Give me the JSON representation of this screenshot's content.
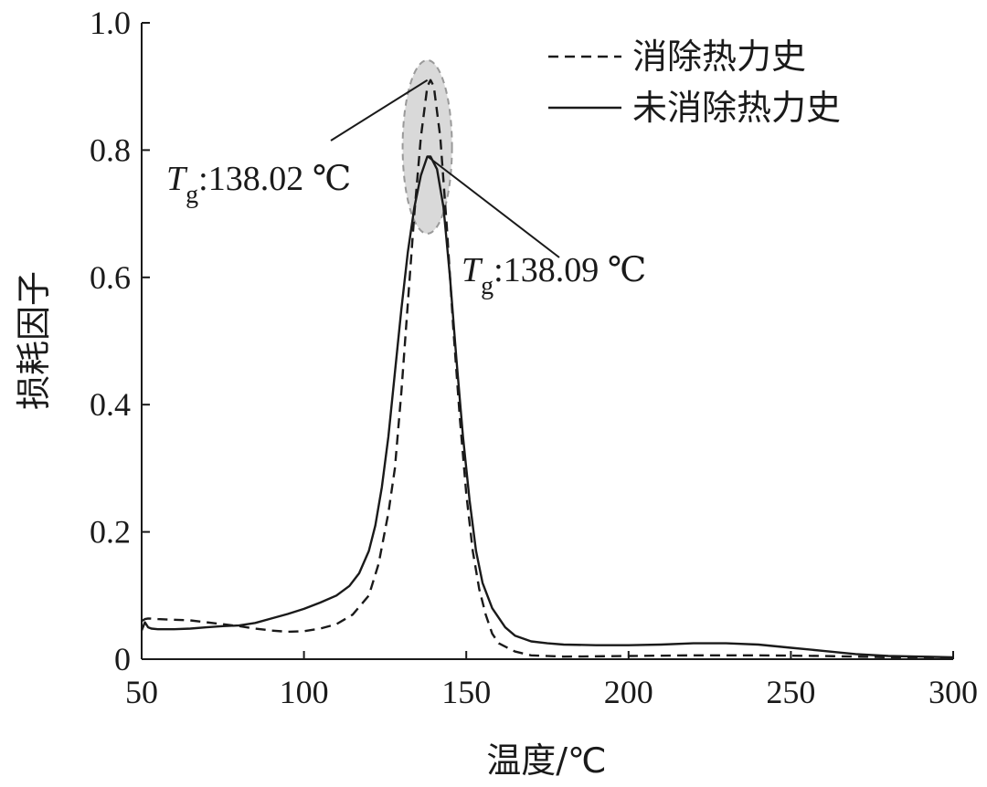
{
  "chart_data": {
    "type": "line",
    "xlabel": "温度/℃",
    "ylabel": "损耗因子",
    "xlim": [
      50,
      300
    ],
    "ylim": [
      0,
      1.0
    ],
    "xticks": [
      50,
      100,
      150,
      200,
      250,
      300
    ],
    "xtick_labels": [
      "50",
      "100",
      "150",
      "200",
      "250",
      "300"
    ],
    "yticks": [
      0,
      0.2,
      0.4,
      0.6,
      0.8,
      1.0
    ],
    "ytick_labels": [
      "0",
      "0.2",
      "0.4",
      "0.6",
      "0.8",
      "1.0"
    ],
    "grid": false,
    "legend_position": "top-right",
    "series": [
      {
        "name": "消除热力史",
        "style": "dashed",
        "color": "#1a1a1a",
        "points": [
          [
            50,
            0.06
          ],
          [
            51,
            0.063
          ],
          [
            52,
            0.064
          ],
          [
            55,
            0.063
          ],
          [
            60,
            0.062
          ],
          [
            65,
            0.061
          ],
          [
            70,
            0.058
          ],
          [
            75,
            0.055
          ],
          [
            80,
            0.052
          ],
          [
            85,
            0.048
          ],
          [
            90,
            0.045
          ],
          [
            95,
            0.043
          ],
          [
            100,
            0.044
          ],
          [
            105,
            0.048
          ],
          [
            110,
            0.055
          ],
          [
            115,
            0.07
          ],
          [
            120,
            0.1
          ],
          [
            123,
            0.15
          ],
          [
            126,
            0.23
          ],
          [
            128,
            0.3
          ],
          [
            130,
            0.42
          ],
          [
            132,
            0.56
          ],
          [
            134,
            0.7
          ],
          [
            136,
            0.82
          ],
          [
            138,
            0.9
          ],
          [
            139,
            0.91
          ],
          [
            140,
            0.9
          ],
          [
            142,
            0.82
          ],
          [
            144,
            0.68
          ],
          [
            146,
            0.52
          ],
          [
            148,
            0.38
          ],
          [
            150,
            0.26
          ],
          [
            152,
            0.17
          ],
          [
            154,
            0.11
          ],
          [
            156,
            0.07
          ],
          [
            158,
            0.04
          ],
          [
            160,
            0.025
          ],
          [
            165,
            0.012
          ],
          [
            170,
            0.006
          ],
          [
            180,
            0.004
          ],
          [
            200,
            0.005
          ],
          [
            220,
            0.006
          ],
          [
            240,
            0.006
          ],
          [
            260,
            0.005
          ],
          [
            280,
            0.003
          ],
          [
            300,
            0.002
          ]
        ]
      },
      {
        "name": "未消除热力史",
        "style": "solid",
        "color": "#1a1a1a",
        "points": [
          [
            50,
            0.045
          ],
          [
            51,
            0.058
          ],
          [
            52,
            0.05
          ],
          [
            53,
            0.048
          ],
          [
            55,
            0.047
          ],
          [
            60,
            0.047
          ],
          [
            65,
            0.048
          ],
          [
            70,
            0.05
          ],
          [
            75,
            0.052
          ],
          [
            80,
            0.053
          ],
          [
            85,
            0.057
          ],
          [
            90,
            0.064
          ],
          [
            95,
            0.071
          ],
          [
            100,
            0.079
          ],
          [
            105,
            0.089
          ],
          [
            110,
            0.1
          ],
          [
            114,
            0.115
          ],
          [
            117,
            0.135
          ],
          [
            120,
            0.17
          ],
          [
            122,
            0.21
          ],
          [
            124,
            0.27
          ],
          [
            126,
            0.35
          ],
          [
            128,
            0.45
          ],
          [
            130,
            0.55
          ],
          [
            132,
            0.64
          ],
          [
            134,
            0.71
          ],
          [
            136,
            0.76
          ],
          [
            138,
            0.79
          ],
          [
            139,
            0.79
          ],
          [
            141,
            0.77
          ],
          [
            143,
            0.71
          ],
          [
            145,
            0.6
          ],
          [
            147,
            0.47
          ],
          [
            149,
            0.35
          ],
          [
            151,
            0.25
          ],
          [
            153,
            0.17
          ],
          [
            155,
            0.12
          ],
          [
            158,
            0.08
          ],
          [
            162,
            0.05
          ],
          [
            165,
            0.037
          ],
          [
            170,
            0.028
          ],
          [
            175,
            0.025
          ],
          [
            180,
            0.023
          ],
          [
            190,
            0.022
          ],
          [
            200,
            0.022
          ],
          [
            210,
            0.023
          ],
          [
            220,
            0.025
          ],
          [
            230,
            0.025
          ],
          [
            240,
            0.023
          ],
          [
            250,
            0.018
          ],
          [
            260,
            0.013
          ],
          [
            270,
            0.008
          ],
          [
            280,
            0.005
          ],
          [
            290,
            0.004
          ],
          [
            300,
            0.003
          ]
        ]
      }
    ],
    "annotations": [
      {
        "T": "T",
        "sub": "g",
        "value_text": ":138.02 ℃",
        "peak_x": 138.02,
        "peak_y": 0.91
      },
      {
        "T": "T",
        "sub": "g",
        "value_text": ":138.09 ℃",
        "peak_x": 138.09,
        "peak_y": 0.79
      }
    ],
    "highlight": {
      "shape": "ellipse",
      "center_x": 138,
      "center_y": 0.805,
      "fill": "#d9d9d9",
      "stroke": "#999999"
    }
  }
}
